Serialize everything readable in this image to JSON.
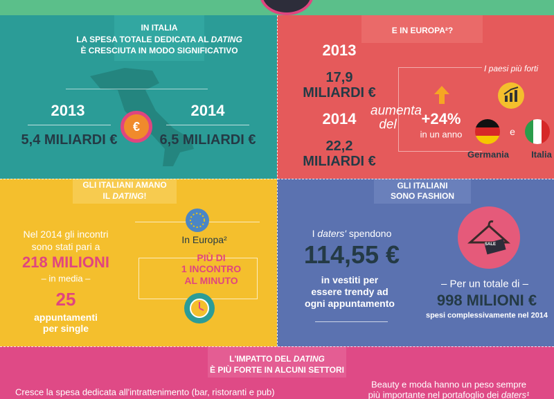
{
  "italia": {
    "title": [
      "IN ITALIA",
      [
        "LA SPESA TOTALE DEDICATA AL ",
        "DATING"
      ],
      "È CRESCIUTA IN MODO SIGNIFICATIVO"
    ],
    "years": [
      {
        "year": "2013",
        "amount": "5,4 MILIARDI €"
      },
      {
        "year": "2014",
        "amount": "6,5 MILIARDI €"
      }
    ]
  },
  "europa": {
    "title": "E IN EUROPA²?",
    "years": [
      {
        "year": "2013",
        "amount": "17,9",
        "unit": "MILIARDI €"
      },
      {
        "year": "2014",
        "amount": "22,2",
        "unit": "MILIARDI €"
      }
    ],
    "growth": {
      "label": [
        "aumenta",
        "del"
      ],
      "value": "+24%",
      "period": "in un anno"
    },
    "countries": {
      "title": "I paesi più forti",
      "and": "e",
      "names": [
        "Germania",
        "Italia"
      ]
    }
  },
  "dating": {
    "title": [
      "GLI ITALIANI AMANO",
      [
        "IL ",
        "DATING",
        "!"
      ]
    ],
    "meetings": {
      "text": [
        "Nel 2014 gli incontri",
        "sono stati pari a"
      ],
      "total": "218 MILIONI",
      "average_label": "– in media –",
      "average": "25",
      "average_unit": [
        "appuntamenti",
        "per single"
      ]
    },
    "europe": {
      "label": "In Europa²",
      "rate": [
        "PIÙ DI",
        "1 INCONTRO",
        "AL MINUTO"
      ]
    }
  },
  "fashion": {
    "title": [
      "GLI ITALIANI",
      "SONO FASHION"
    ],
    "spend": {
      "text": [
        "I ",
        "daters'",
        " spendono"
      ],
      "amount": "114,55 €",
      "detail": [
        "in vestiti per",
        "essere trendy ad",
        "ogni appuntamento"
      ]
    },
    "tag": "SALE",
    "total": {
      "label": "– Per un totale di –",
      "amount": "998 MILIONI €",
      "note": "spesi complessivamente nel 2014"
    }
  },
  "impact": {
    "title": [
      [
        "L'IMPATTO DEL ",
        "DATING"
      ],
      "È PIÙ FORTE IN ALCUNI SETTORI"
    ],
    "left": "Cresce la spesa dedicata all'intrattenimento (bar, ristoranti e pub)",
    "right": [
      "Beauty e moda hanno un peso sempre",
      [
        "più importante nel portafoglio dei ",
        "daters¹"
      ]
    ]
  }
}
